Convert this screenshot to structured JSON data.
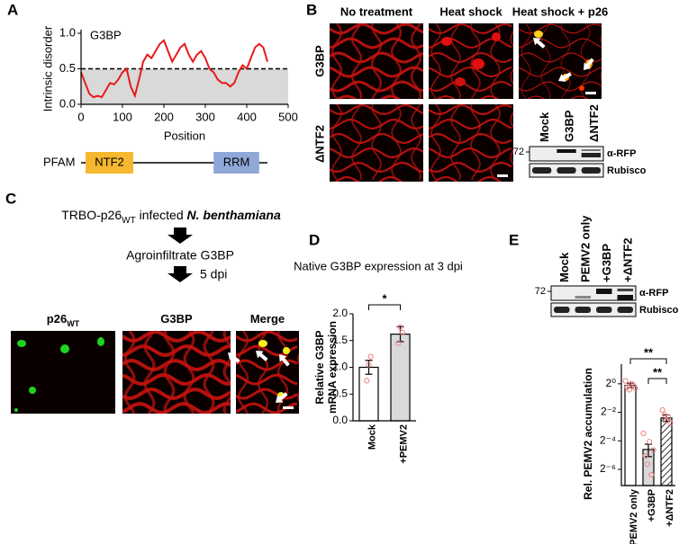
{
  "panel_labels": [
    "A",
    "B",
    "C",
    "D",
    "E"
  ],
  "chart_data": [
    {
      "type": "line",
      "annotation": "G3BP",
      "x_label": "Position",
      "y_label": "Intrinsic disorder",
      "x": [
        0,
        10,
        20,
        30,
        40,
        50,
        60,
        70,
        80,
        90,
        100,
        110,
        120,
        130,
        140,
        150,
        160,
        170,
        180,
        190,
        200,
        210,
        220,
        230,
        240,
        250,
        260,
        270,
        280,
        290,
        300,
        310,
        320,
        330,
        340,
        350,
        360,
        370,
        380,
        390,
        400,
        410,
        420,
        430,
        440,
        450
      ],
      "values": [
        0.45,
        0.3,
        0.15,
        0.1,
        0.12,
        0.1,
        0.2,
        0.3,
        0.28,
        0.35,
        0.45,
        0.5,
        0.25,
        0.12,
        0.35,
        0.6,
        0.7,
        0.65,
        0.75,
        0.85,
        0.9,
        0.75,
        0.6,
        0.7,
        0.8,
        0.85,
        0.7,
        0.6,
        0.7,
        0.75,
        0.65,
        0.5,
        0.45,
        0.35,
        0.3,
        0.3,
        0.25,
        0.3,
        0.45,
        0.55,
        0.5,
        0.65,
        0.8,
        0.85,
        0.8,
        0.6
      ],
      "color": "#e8191a",
      "threshold": 0.5,
      "xlim": [
        0,
        500
      ],
      "xticks": [
        0,
        100,
        200,
        300,
        400,
        500
      ],
      "ylim": [
        0,
        1.0
      ],
      "yticks": [
        {
          "value": 0,
          "label": "0.0"
        },
        {
          "value": 0.5,
          "label": "0.5"
        },
        {
          "value": 1,
          "label": "1.0"
        }
      ],
      "domain_track": {
        "label": "PFAM",
        "domains": [
          {
            "name": "NTF2",
            "start": 11,
            "end": 126,
            "color": "#f5b82e"
          },
          {
            "name": "RRM",
            "start": 320,
            "end": 430,
            "color": "#8fa8d8"
          }
        ]
      }
    },
    {
      "type": "bar",
      "title": "Native G3BP expression at 3 dpi",
      "y_label": [
        "Relative G3BP",
        "mRNA expression"
      ],
      "categories": [
        "Mock",
        "+PEMV2"
      ],
      "values": [
        1.0,
        1.62
      ],
      "errors": [
        0.13,
        0.14
      ],
      "points": [
        [
          0.75,
          1.05,
          1.2
        ],
        [
          1.45,
          1.75,
          1.65
        ]
      ],
      "colors": [
        "#ffffff",
        "#d9d9d9"
      ],
      "point_color": "#f08080",
      "ylim": [
        0,
        2.0
      ],
      "yticks": [
        {
          "value": 0,
          "label": "0.0"
        },
        {
          "value": 0.5,
          "label": "0.5"
        },
        {
          "value": 1,
          "label": "1.0"
        },
        {
          "value": 1.5,
          "label": "1.5"
        },
        {
          "value": 2,
          "label": "2.0"
        }
      ],
      "significance": [
        "*"
      ]
    },
    {
      "type": "bar",
      "y_label": "Rel. PEMV2 accumulation",
      "log_base": 2,
      "categories": [
        "PEMV2 only",
        "+G3BP",
        "+ΔNTF2"
      ],
      "values": [
        0.93,
        0.041,
        0.19
      ],
      "errors": [
        0.1,
        0.012,
        0.03
      ],
      "points": [
        [
          1.15,
          0.85,
          0.75,
          1.0,
          0.95,
          0.8
        ],
        [
          0.09,
          0.03,
          0.02,
          0.06,
          0.012,
          0.04
        ],
        [
          0.28,
          0.22,
          0.17,
          0.2,
          0.15
        ]
      ],
      "colors": [
        "#ffffff",
        "#d9d9d9",
        "#ffffff"
      ],
      "hatched": [
        false,
        false,
        true
      ],
      "point_color": "#f08080",
      "ylim": [
        0.0071,
        2.6
      ],
      "yticks": [
        {
          "value": 1,
          "label": "2⁰"
        },
        {
          "value": 0.25,
          "label": "2⁻²"
        },
        {
          "value": 0.0625,
          "label": "2⁻⁴"
        },
        {
          "value": 0.015625,
          "label": "2⁻⁶"
        }
      ],
      "significance": [
        "**",
        "**"
      ]
    }
  ],
  "panel_b": {
    "columns": [
      "No treatment",
      "Heat shock",
      "Heat shock + p26"
    ],
    "rows": [
      "G3BP",
      "ΔNTF2"
    ],
    "blot": {
      "lanes": [
        "Mock",
        "G3BP",
        "ΔNTF2"
      ],
      "marker": "72",
      "bands": [
        "α-RFP",
        "Rubisco"
      ]
    }
  },
  "panel_c": {
    "title_parts": [
      "TRBO-p26",
      "WT",
      " infected ",
      "N. benthamiana"
    ],
    "step1": "Agroinfiltrate G3BP",
    "step2": "5 dpi",
    "images": [
      {
        "text": "p26",
        "sub": "WT"
      },
      {
        "text": "G3BP"
      },
      {
        "text": "Merge"
      }
    ]
  },
  "panel_e_blot": {
    "lanes": [
      "Mock",
      "PEMV2 only",
      "+G3BP",
      "+ΔNTF2"
    ],
    "marker": "72",
    "bands": [
      "α-RFP",
      "Rubisco"
    ]
  }
}
